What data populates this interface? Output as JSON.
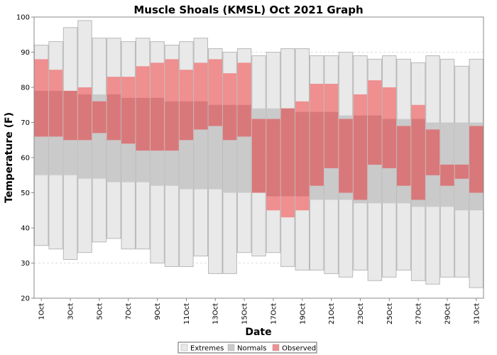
{
  "chart_data": {
    "type": "bar",
    "title": "Muscle Shoals (KMSL) Oct 2021 Graph",
    "xlabel": "Date",
    "ylabel": "Temperature (F)",
    "ylim": [
      20,
      100
    ],
    "yticks": [
      20,
      30,
      40,
      50,
      60,
      70,
      80,
      90,
      100
    ],
    "grid": true,
    "legend_position": "bottom",
    "categories": [
      "1Oct",
      "2Oct",
      "3Oct",
      "4Oct",
      "5Oct",
      "6Oct",
      "7Oct",
      "8Oct",
      "9Oct",
      "10Oct",
      "11Oct",
      "12Oct",
      "13Oct",
      "14Oct",
      "15Oct",
      "16Oct",
      "17Oct",
      "18Oct",
      "19Oct",
      "20Oct",
      "21Oct",
      "22Oct",
      "23Oct",
      "24Oct",
      "25Oct",
      "26Oct",
      "27Oct",
      "28Oct",
      "29Oct",
      "30Oct",
      "31Oct"
    ],
    "tick_labels": [
      "1Oct",
      "3Oct",
      "5Oct",
      "7Oct",
      "9Oct",
      "11Oct",
      "13Oct",
      "15Oct",
      "17Oct",
      "19Oct",
      "21Oct",
      "23Oct",
      "25Oct",
      "27Oct",
      "29Oct",
      "31Oct"
    ],
    "legend": [
      "Extremes",
      "Normals",
      "Observed"
    ],
    "colors": {
      "extremes_fill": "#e9e9e9",
      "extremes_stroke": "#b8b8b8",
      "normals_fill": "#cacaca",
      "observed_fill": "#ef8f8f",
      "overlap_fill": "#d9787a",
      "grid": "#dddddd"
    },
    "series": [
      {
        "name": "Extremes",
        "low": [
          35,
          34,
          31,
          33,
          36,
          37,
          34,
          34,
          30,
          29,
          29,
          32,
          27,
          27,
          33,
          32,
          33,
          29,
          28,
          28,
          27,
          26,
          28,
          25,
          26,
          28,
          25,
          24,
          26,
          26,
          23
        ],
        "high": [
          92,
          93,
          97,
          99,
          94,
          94,
          93,
          94,
          93,
          92,
          93,
          94,
          91,
          90,
          91,
          89,
          90,
          91,
          91,
          89,
          89,
          90,
          89,
          88,
          89,
          88,
          87,
          89,
          88,
          86,
          88
        ]
      },
      {
        "name": "Normals",
        "low": [
          55,
          55,
          55,
          54,
          54,
          53,
          53,
          53,
          52,
          52,
          51,
          51,
          51,
          50,
          50,
          50,
          49,
          49,
          49,
          48,
          48,
          48,
          47,
          47,
          47,
          47,
          46,
          46,
          46,
          45,
          45
        ],
        "high": [
          79,
          79,
          79,
          78,
          78,
          78,
          77,
          77,
          77,
          76,
          76,
          76,
          75,
          75,
          75,
          74,
          74,
          74,
          73,
          73,
          73,
          72,
          72,
          72,
          71,
          71,
          71,
          70,
          70,
          70,
          70
        ]
      },
      {
        "name": "Observed",
        "low": [
          66,
          66,
          65,
          65,
          67,
          65,
          64,
          62,
          62,
          62,
          65,
          68,
          69,
          65,
          66,
          50,
          45,
          43,
          45,
          52,
          57,
          50,
          48,
          58,
          57,
          52,
          48,
          55,
          52,
          54,
          50
        ],
        "high": [
          88,
          85,
          79,
          80,
          76,
          83,
          83,
          86,
          87,
          88,
          85,
          87,
          88,
          84,
          87,
          71,
          71,
          74,
          76,
          81,
          81,
          71,
          78,
          82,
          80,
          69,
          75,
          68,
          58,
          58,
          69
        ]
      }
    ]
  }
}
